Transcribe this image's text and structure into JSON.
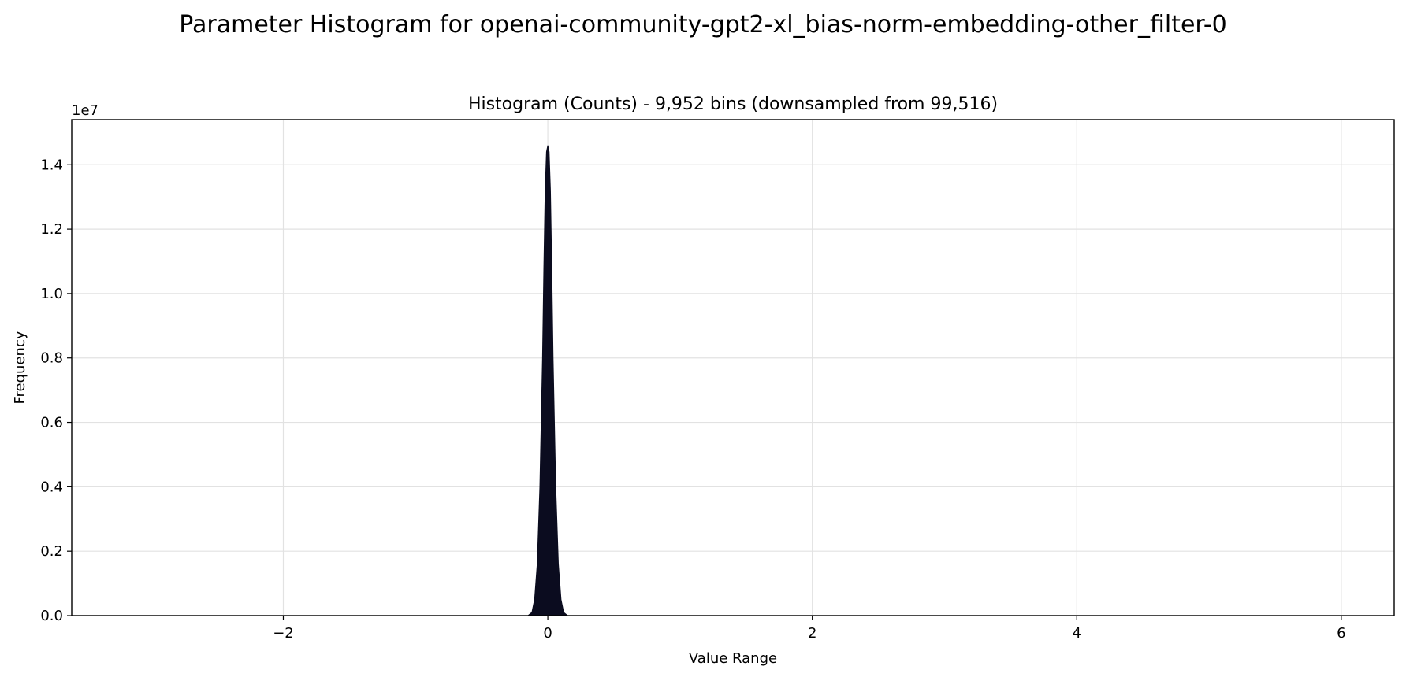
{
  "figure": {
    "suptitle": "Parameter Histogram for openai-community-gpt2-xl_bias-norm-embedding-other_filter-0"
  },
  "chart_data": {
    "type": "area",
    "title": "Histogram (Counts) - 9,952 bins (downsampled from 99,516)",
    "xlabel": "Value Range",
    "ylabel": "Frequency",
    "y_offset_label": "1e7",
    "xlim": [
      -3.6,
      6.4
    ],
    "ylim": [
      0,
      1.54
    ],
    "xticks": [
      -2,
      0,
      2,
      4,
      6
    ],
    "xtick_labels": [
      "−2",
      "0",
      "2",
      "4",
      "6"
    ],
    "yticks": [
      0,
      0.2,
      0.4,
      0.6,
      0.8,
      1.0,
      1.2,
      1.4
    ],
    "ytick_labels": [
      "0.0",
      "0.2",
      "0.4",
      "0.6",
      "0.8",
      "1.0",
      "1.2",
      "1.4"
    ],
    "grid": true,
    "fill_color": "#0b0c1f",
    "series": [
      {
        "x": [
          -0.15,
          -0.12,
          -0.1,
          -0.08,
          -0.06,
          -0.04,
          -0.03,
          -0.02,
          -0.01,
          0.0,
          0.01,
          0.02,
          0.03,
          0.04,
          0.06,
          0.08,
          0.1,
          0.12,
          0.15
        ],
        "values": [
          0.0,
          0.01,
          0.05,
          0.16,
          0.4,
          0.8,
          1.08,
          1.32,
          1.44,
          1.46,
          1.44,
          1.32,
          1.08,
          0.8,
          0.4,
          0.16,
          0.05,
          0.01,
          0.0
        ]
      }
    ]
  }
}
